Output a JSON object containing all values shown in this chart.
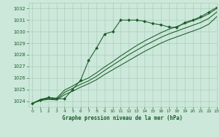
{
  "title": "Graphe pression niveau de la mer (hPa)",
  "bg_color": "#cce8da",
  "grid_color": "#aaccbb",
  "line_color": "#1a5c28",
  "xlim": [
    -0.5,
    23
  ],
  "ylim": [
    1023.5,
    1032.5
  ],
  "yticks": [
    1024,
    1025,
    1026,
    1027,
    1028,
    1029,
    1030,
    1031,
    1032
  ],
  "xticks": [
    0,
    1,
    2,
    3,
    4,
    5,
    6,
    7,
    8,
    9,
    10,
    11,
    12,
    13,
    14,
    15,
    16,
    17,
    18,
    19,
    20,
    21,
    22,
    23
  ],
  "marked_series": {
    "x": [
      0,
      1,
      2,
      3,
      4,
      5,
      6,
      7,
      8,
      9,
      10,
      11,
      12,
      13,
      14,
      15,
      16,
      17,
      18,
      19,
      20,
      21,
      22,
      23
    ],
    "y": [
      1023.8,
      1024.1,
      1024.3,
      1024.2,
      1024.2,
      1025.0,
      1025.8,
      1027.5,
      1028.6,
      1029.8,
      1030.0,
      1031.0,
      1031.0,
      1031.0,
      1030.9,
      1030.7,
      1030.6,
      1030.4,
      1030.35,
      1030.8,
      1031.0,
      1031.3,
      1031.7,
      1032.1
    ]
  },
  "smooth_lines": [
    {
      "x": [
        0,
        1,
        2,
        3,
        4,
        5,
        6,
        7,
        8,
        9,
        10,
        11,
        12,
        13,
        14,
        15,
        16,
        17,
        18,
        19,
        20,
        21,
        22,
        23
      ],
      "y": [
        1023.8,
        1024.05,
        1024.15,
        1024.1,
        1024.55,
        1024.85,
        1025.2,
        1025.5,
        1025.85,
        1026.3,
        1026.7,
        1027.1,
        1027.5,
        1027.9,
        1028.3,
        1028.65,
        1029.0,
        1029.3,
        1029.55,
        1029.8,
        1030.05,
        1030.3,
        1030.65,
        1031.3
      ]
    },
    {
      "x": [
        0,
        1,
        2,
        3,
        4,
        5,
        6,
        7,
        8,
        9,
        10,
        11,
        12,
        13,
        14,
        15,
        16,
        17,
        18,
        19,
        20,
        21,
        22,
        23
      ],
      "y": [
        1023.8,
        1024.1,
        1024.2,
        1024.15,
        1024.75,
        1025.1,
        1025.45,
        1025.75,
        1026.15,
        1026.65,
        1027.1,
        1027.55,
        1028.0,
        1028.4,
        1028.8,
        1029.15,
        1029.5,
        1029.8,
        1030.05,
        1030.3,
        1030.55,
        1030.8,
        1031.15,
        1031.7
      ]
    },
    {
      "x": [
        0,
        1,
        2,
        3,
        4,
        5,
        6,
        7,
        8,
        9,
        10,
        11,
        12,
        13,
        14,
        15,
        16,
        17,
        18,
        19,
        20,
        21,
        22,
        23
      ],
      "y": [
        1023.8,
        1024.15,
        1024.3,
        1024.25,
        1024.95,
        1025.3,
        1025.7,
        1026.0,
        1026.45,
        1026.95,
        1027.4,
        1027.9,
        1028.35,
        1028.8,
        1029.2,
        1029.55,
        1029.9,
        1030.2,
        1030.45,
        1030.7,
        1030.95,
        1031.2,
        1031.55,
        1032.0
      ]
    }
  ]
}
